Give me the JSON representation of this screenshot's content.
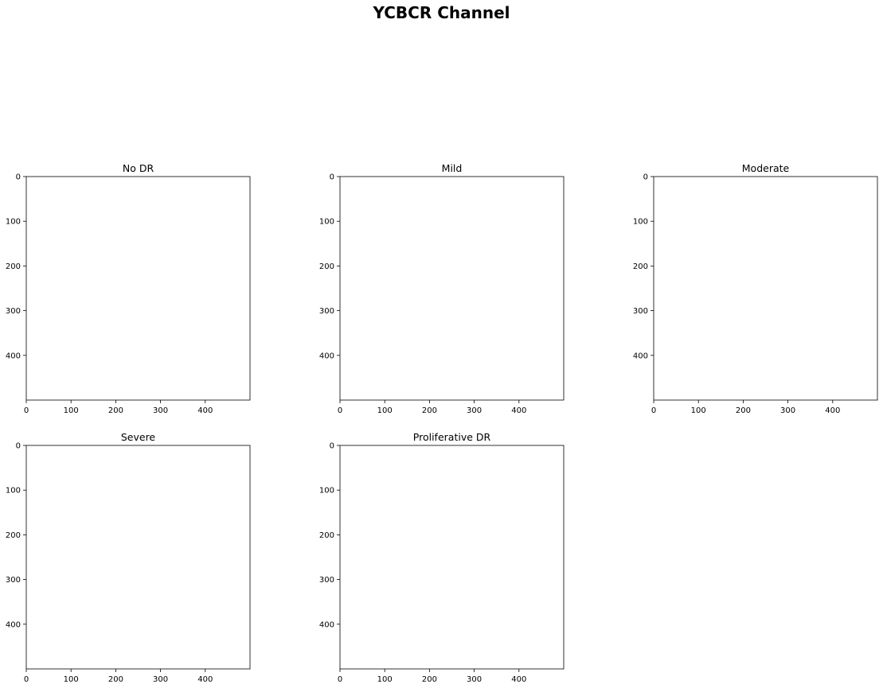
{
  "figure": {
    "title": "YCBCR Channel"
  },
  "chart_data": [
    {
      "type": "heatmap",
      "title": "No DR",
      "xlim": [
        0,
        500
      ],
      "ylim": [
        500,
        0
      ],
      "xticks": [
        0,
        100,
        200,
        300,
        400
      ],
      "yticks": [
        0,
        100,
        200,
        300,
        400
      ],
      "grid": false
    },
    {
      "type": "heatmap",
      "title": "Mild",
      "xlim": [
        0,
        500
      ],
      "ylim": [
        500,
        0
      ],
      "xticks": [
        0,
        100,
        200,
        300,
        400
      ],
      "yticks": [
        0,
        100,
        200,
        300,
        400
      ],
      "grid": false
    },
    {
      "type": "heatmap",
      "title": "Moderate",
      "xlim": [
        0,
        500
      ],
      "ylim": [
        500,
        0
      ],
      "xticks": [
        0,
        100,
        200,
        300,
        400
      ],
      "yticks": [
        0,
        100,
        200,
        300,
        400
      ],
      "grid": false
    },
    {
      "type": "heatmap",
      "title": "Severe",
      "xlim": [
        0,
        500
      ],
      "ylim": [
        500,
        0
      ],
      "xticks": [
        0,
        100,
        200,
        300,
        400
      ],
      "yticks": [
        0,
        100,
        200,
        300,
        400
      ],
      "grid": false
    },
    {
      "type": "heatmap",
      "title": "Proliferative DR",
      "xlim": [
        0,
        500
      ],
      "ylim": [
        500,
        0
      ],
      "xticks": [
        0,
        100,
        200,
        300,
        400
      ],
      "yticks": [
        0,
        100,
        200,
        300,
        400
      ],
      "grid": false
    }
  ]
}
